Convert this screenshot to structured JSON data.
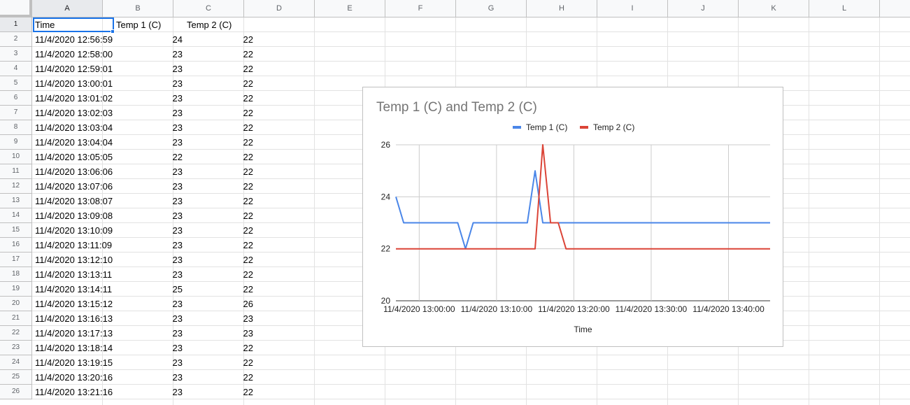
{
  "columns": [
    "A",
    "B",
    "C",
    "D",
    "E",
    "F",
    "G",
    "H",
    "I",
    "J",
    "K",
    "L"
  ],
  "rows": [
    [
      "Time",
      "Temp 1 (C)",
      "Temp 2 (C)"
    ],
    [
      "11/4/2020 12:56:59",
      "24",
      "22"
    ],
    [
      "11/4/2020 12:58:00",
      "23",
      "22"
    ],
    [
      "11/4/2020 12:59:01",
      "23",
      "22"
    ],
    [
      "11/4/2020 13:00:01",
      "23",
      "22"
    ],
    [
      "11/4/2020 13:01:02",
      "23",
      "22"
    ],
    [
      "11/4/2020 13:02:03",
      "23",
      "22"
    ],
    [
      "11/4/2020 13:03:04",
      "23",
      "22"
    ],
    [
      "11/4/2020 13:04:04",
      "23",
      "22"
    ],
    [
      "11/4/2020 13:05:05",
      "22",
      "22"
    ],
    [
      "11/4/2020 13:06:06",
      "23",
      "22"
    ],
    [
      "11/4/2020 13:07:06",
      "23",
      "22"
    ],
    [
      "11/4/2020 13:08:07",
      "23",
      "22"
    ],
    [
      "11/4/2020 13:09:08",
      "23",
      "22"
    ],
    [
      "11/4/2020 13:10:09",
      "23",
      "22"
    ],
    [
      "11/4/2020 13:11:09",
      "23",
      "22"
    ],
    [
      "11/4/2020 13:12:10",
      "23",
      "22"
    ],
    [
      "11/4/2020 13:13:11",
      "23",
      "22"
    ],
    [
      "11/4/2020 13:14:11",
      "25",
      "22"
    ],
    [
      "11/4/2020 13:15:12",
      "23",
      "26"
    ],
    [
      "11/4/2020 13:16:13",
      "23",
      "23"
    ],
    [
      "11/4/2020 13:17:13",
      "23",
      "23"
    ],
    [
      "11/4/2020 13:18:14",
      "23",
      "22"
    ],
    [
      "11/4/2020 13:19:15",
      "23",
      "22"
    ],
    [
      "11/4/2020 13:20:16",
      "23",
      "22"
    ],
    [
      "11/4/2020 13:21:16",
      "23",
      "22"
    ]
  ],
  "row_numbers": [
    "1",
    "2",
    "3",
    "4",
    "5",
    "6",
    "7",
    "8",
    "9",
    "10",
    "11",
    "12",
    "13",
    "14",
    "15",
    "16",
    "17",
    "18",
    "19",
    "20",
    "21",
    "22",
    "23",
    "24",
    "25",
    "26"
  ],
  "chart_data": {
    "type": "line",
    "title": "Temp 1 (C) and Temp 2 (C)",
    "xlabel": "Time",
    "ylabel": "",
    "ylim": [
      20,
      26
    ],
    "y_ticks": [
      "20",
      "22",
      "24",
      "26"
    ],
    "x_ticks": [
      "11/4/2020 13:00:00",
      "11/4/2020 13:10:00",
      "11/4/2020 13:20:00",
      "11/4/2020 13:30:00",
      "11/4/2020 13:40:00"
    ],
    "x_tick_minutes": [
      3.0167,
      13.0167,
      23.0167,
      33.0167,
      43.0167
    ],
    "x_range_minutes": [
      0,
      48.4
    ],
    "legend_position": "top",
    "series": [
      {
        "name": "Temp 1 (C)",
        "color": "#4a86e8",
        "x_minutes": [
          0,
          1,
          2,
          3,
          4,
          5,
          6,
          7,
          8,
          9,
          10,
          11,
          12,
          13,
          14,
          15,
          16,
          17,
          18,
          19,
          20,
          21,
          22,
          23,
          24,
          48.4
        ],
        "values": [
          24,
          23,
          23,
          23,
          23,
          23,
          23,
          23,
          23,
          22,
          23,
          23,
          23,
          23,
          23,
          23,
          23,
          23,
          25,
          23,
          23,
          23,
          23,
          23,
          23,
          23
        ]
      },
      {
        "name": "Temp 2 (C)",
        "color": "#db4437",
        "x_minutes": [
          0,
          1,
          2,
          3,
          4,
          5,
          6,
          7,
          8,
          9,
          10,
          11,
          12,
          13,
          14,
          15,
          16,
          17,
          18,
          19,
          20,
          21,
          22,
          23,
          24,
          48.4
        ],
        "values": [
          22,
          22,
          22,
          22,
          22,
          22,
          22,
          22,
          22,
          22,
          22,
          22,
          22,
          22,
          22,
          22,
          22,
          22,
          22,
          26,
          23,
          23,
          22,
          22,
          22,
          22
        ]
      }
    ]
  }
}
